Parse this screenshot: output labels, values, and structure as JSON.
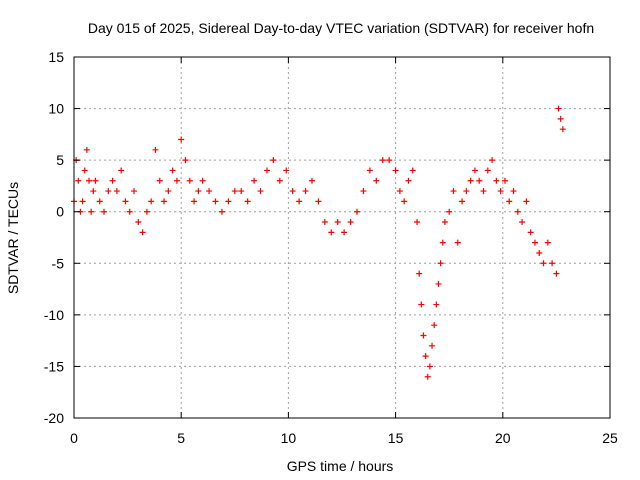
{
  "colors": {
    "series": "#ff0000",
    "grid": "#a0a0a0",
    "axis": "#000000",
    "background": "#ffffff"
  },
  "chart_data": {
    "type": "scatter",
    "title": "Day 015 of 2025, Sidereal Day-to-day VTEC variation (SDTVAR) for receiver hofn",
    "xlabel": "GPS time / hours",
    "ylabel": "SDTVAR / TECUs",
    "xlim": [
      0,
      25
    ],
    "ylim": [
      -20,
      15
    ],
    "xticks": [
      0,
      5,
      10,
      15,
      20,
      25
    ],
    "yticks": [
      -20,
      -15,
      -10,
      -5,
      0,
      5,
      10,
      15
    ],
    "xtick_labels": [
      "0",
      "5",
      "10",
      "15",
      "20",
      "25"
    ],
    "ytick_labels": [
      "-20",
      "-15",
      "-10",
      "-5",
      "0",
      "5",
      "10",
      "15"
    ],
    "grid": true,
    "marker": "+",
    "series": [
      {
        "name": "hofn",
        "x": [
          0.0,
          0.1,
          0.2,
          0.3,
          0.4,
          0.5,
          0.6,
          0.7,
          0.8,
          0.9,
          1.0,
          1.2,
          1.4,
          1.6,
          1.8,
          2.0,
          2.2,
          2.4,
          2.6,
          2.8,
          3.0,
          3.2,
          3.4,
          3.6,
          3.8,
          4.0,
          4.2,
          4.4,
          4.6,
          4.8,
          5.0,
          5.2,
          5.4,
          5.6,
          5.8,
          6.0,
          6.3,
          6.6,
          6.9,
          7.2,
          7.5,
          7.8,
          8.1,
          8.4,
          8.7,
          9.0,
          9.3,
          9.6,
          9.9,
          10.2,
          10.5,
          10.8,
          11.1,
          11.4,
          11.7,
          12.0,
          12.3,
          12.6,
          12.9,
          13.2,
          13.5,
          13.8,
          14.1,
          14.4,
          14.7,
          15.0,
          15.2,
          15.4,
          15.6,
          15.8,
          16.0,
          16.1,
          16.2,
          16.3,
          16.4,
          16.5,
          16.6,
          16.7,
          16.8,
          16.9,
          17.0,
          17.1,
          17.2,
          17.3,
          17.5,
          17.7,
          17.9,
          18.1,
          18.3,
          18.5,
          18.7,
          18.9,
          19.1,
          19.3,
          19.5,
          19.7,
          19.9,
          20.1,
          20.3,
          20.5,
          20.7,
          20.9,
          21.1,
          21.3,
          21.5,
          21.7,
          21.9,
          22.1,
          22.3,
          22.5,
          22.6,
          22.7,
          22.8
        ],
        "y": [
          1.0,
          5.0,
          3.0,
          0.0,
          1.0,
          4.0,
          6.0,
          3.0,
          0.0,
          2.0,
          3.0,
          1.0,
          0.0,
          2.0,
          3.0,
          2.0,
          4.0,
          1.0,
          0.0,
          2.0,
          -1.0,
          -2.0,
          0.0,
          1.0,
          6.0,
          3.0,
          1.0,
          2.0,
          4.0,
          3.0,
          7.0,
          5.0,
          3.0,
          1.0,
          2.0,
          3.0,
          2.0,
          1.0,
          0.0,
          1.0,
          2.0,
          2.0,
          1.0,
          3.0,
          2.0,
          4.0,
          5.0,
          3.0,
          4.0,
          2.0,
          1.0,
          2.0,
          3.0,
          1.0,
          -1.0,
          -2.0,
          -1.0,
          -2.0,
          -1.0,
          0.0,
          2.0,
          4.0,
          3.0,
          5.0,
          5.0,
          4.0,
          2.0,
          1.0,
          3.0,
          4.0,
          -1.0,
          -6.0,
          -9.0,
          -12.0,
          -14.0,
          -16.0,
          -15.0,
          -13.0,
          -11.0,
          -9.0,
          -7.0,
          -5.0,
          -3.0,
          -1.0,
          0.0,
          2.0,
          -3.0,
          1.0,
          2.0,
          3.0,
          4.0,
          3.0,
          2.0,
          4.0,
          5.0,
          3.0,
          2.0,
          3.0,
          1.0,
          2.0,
          0.0,
          -1.0,
          1.0,
          -2.0,
          -3.0,
          -4.0,
          -5.0,
          -3.0,
          -5.0,
          -6.0,
          10.0,
          9.0,
          8.0
        ]
      }
    ]
  }
}
